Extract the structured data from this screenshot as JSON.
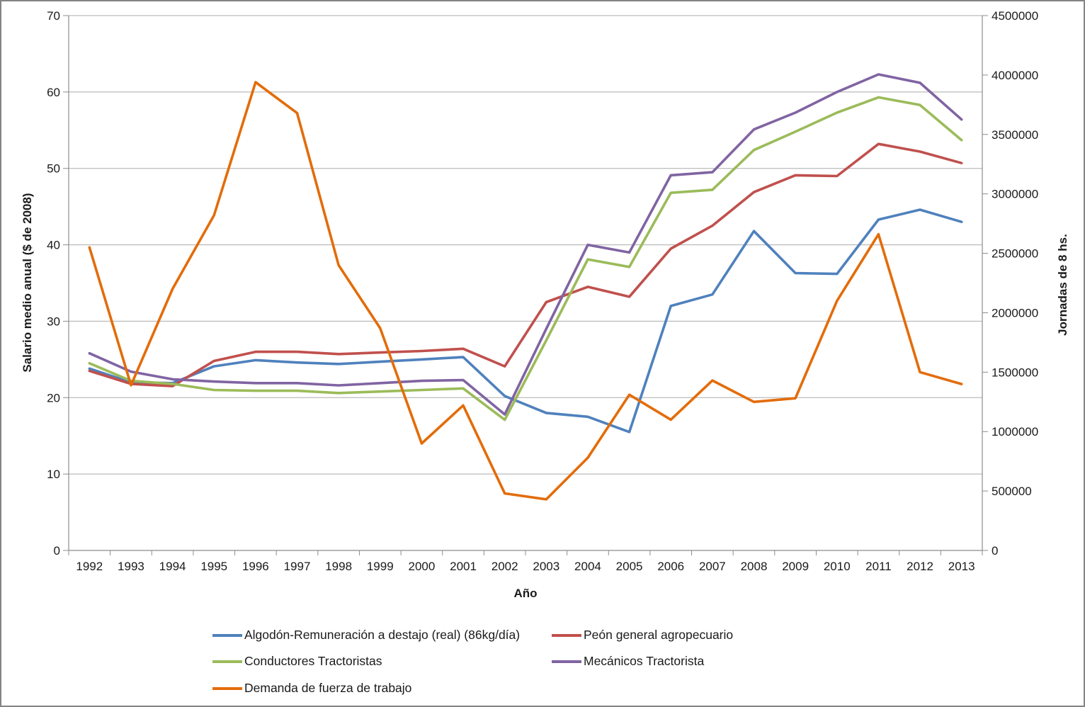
{
  "chart_data": {
    "type": "line",
    "title": "",
    "xlabel": "Año",
    "categories": [
      "1992",
      "1993",
      "1994",
      "1995",
      "1996",
      "1997",
      "1998",
      "1999",
      "2000",
      "2001",
      "2002",
      "2003",
      "2004",
      "2005",
      "2006",
      "2007",
      "2008",
      "2009",
      "2010",
      "2011",
      "2012",
      "2013"
    ],
    "left_axis": {
      "title": "Salario medio anual ($ de 2008)",
      "min": 0,
      "max": 70,
      "step": 10
    },
    "right_axis": {
      "title": "Jornadas de 8 hs.",
      "min": 0,
      "max": 4500000,
      "step": 500000
    },
    "grid": true,
    "legend_position": "bottom",
    "series": [
      {
        "name": "Algodón-Remuneración a destajo (real) (86kg/día)",
        "axis": "left",
        "color": "#4F81BD",
        "values": [
          23.8,
          22.0,
          21.9,
          24.1,
          24.9,
          24.6,
          24.4,
          24.7,
          25.0,
          25.3,
          20.2,
          18.0,
          17.5,
          15.5,
          32.0,
          33.5,
          41.8,
          36.3,
          36.2,
          43.3,
          44.6,
          43.0
        ]
      },
      {
        "name": "Peón general agropecuario",
        "axis": "left",
        "color": "#C0504D",
        "values": [
          23.5,
          21.8,
          21.5,
          24.8,
          26.0,
          26.0,
          25.7,
          25.9,
          26.1,
          26.4,
          24.1,
          32.5,
          34.5,
          33.2,
          39.5,
          42.5,
          46.9,
          49.1,
          49.0,
          53.2,
          52.2,
          50.7
        ]
      },
      {
        "name": "Conductores Tractoristas",
        "axis": "left",
        "color": "#9BBB59",
        "values": [
          24.5,
          22.2,
          21.8,
          21.0,
          20.9,
          20.9,
          20.6,
          20.8,
          21.0,
          21.2,
          17.1,
          27.5,
          38.1,
          37.1,
          46.8,
          47.2,
          52.4,
          54.8,
          57.3,
          59.3,
          58.3,
          53.7
        ]
      },
      {
        "name": "Mecánicos Tractorista",
        "axis": "left",
        "color": "#8064A2",
        "values": [
          25.8,
          23.4,
          22.4,
          22.1,
          21.9,
          21.9,
          21.6,
          21.9,
          22.2,
          22.3,
          17.8,
          29.0,
          40.0,
          39.0,
          49.1,
          49.5,
          55.1,
          57.3,
          60.0,
          62.3,
          61.2,
          56.4
        ]
      },
      {
        "name": "Demanda de fuerza de trabajo",
        "axis": "right",
        "color": "#E36C0A",
        "values": [
          2550000,
          1390000,
          2200000,
          2820000,
          3940000,
          3680000,
          2400000,
          1870000,
          900000,
          1220000,
          480000,
          430000,
          780000,
          1310000,
          1100000,
          1430000,
          1250000,
          1280000,
          2100000,
          2660000,
          1500000,
          1400000
        ]
      }
    ],
    "style": {
      "gridline_color": "#ABABAB",
      "axis_line_color": "#8C8C8C",
      "tick_label_color": "#1a1a1a"
    }
  }
}
